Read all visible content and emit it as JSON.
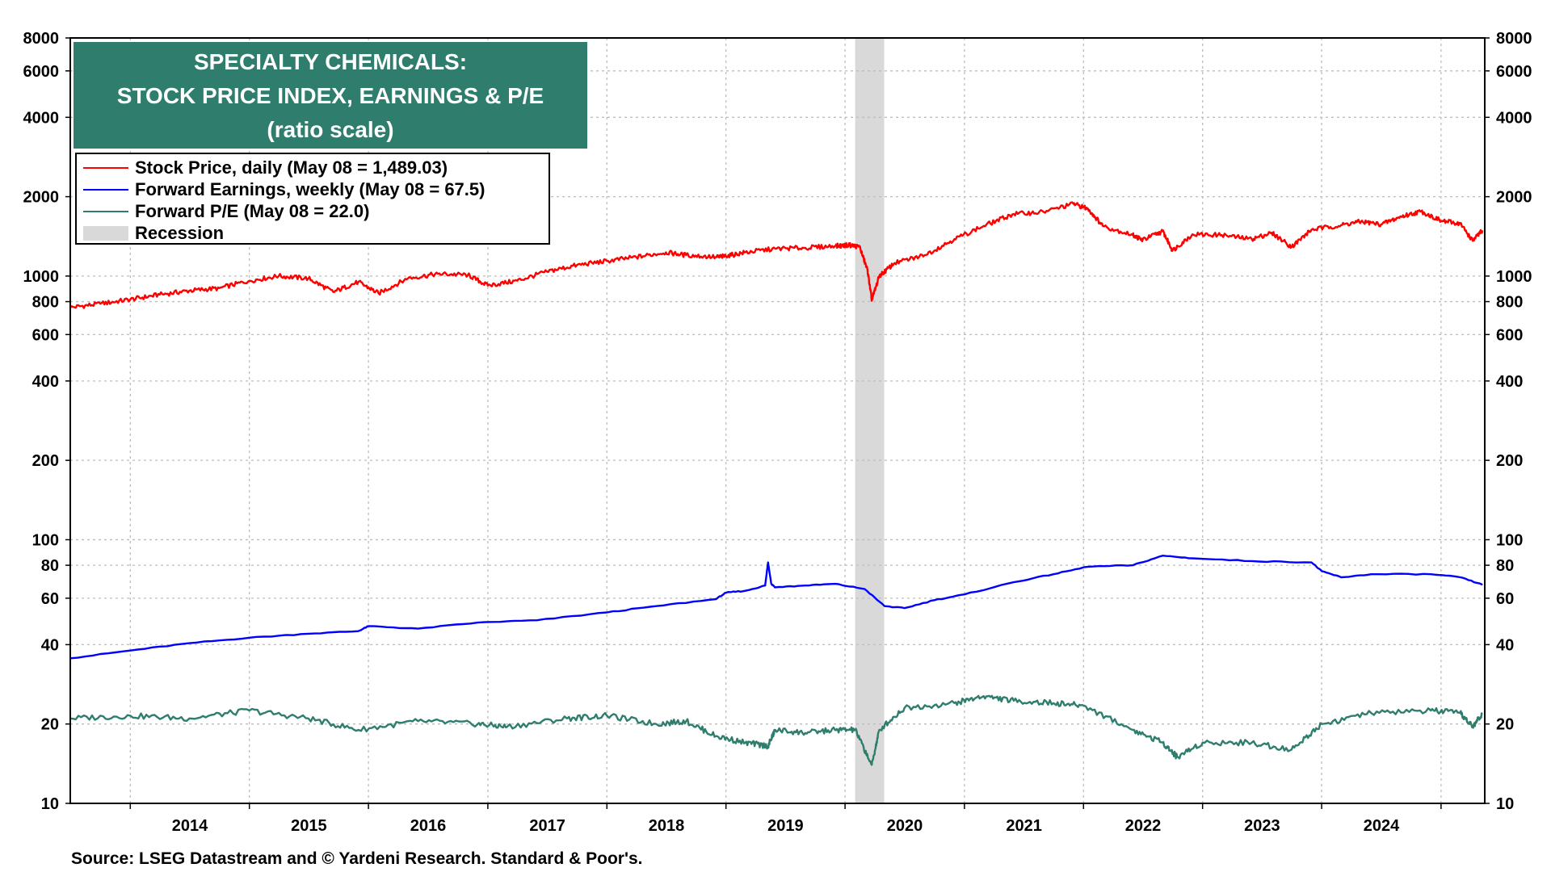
{
  "chart_data": {
    "type": "line",
    "title_lines": [
      "SPECIALTY CHEMICALS:",
      "STOCK PRICE INDEX, EARNINGS & P/E",
      "(ratio scale)"
    ],
    "y_scale": "log",
    "ylim": [
      10,
      8000
    ],
    "y_ticks": [
      10,
      20,
      40,
      60,
      80,
      100,
      200,
      400,
      600,
      800,
      1000,
      2000,
      4000,
      6000,
      8000
    ],
    "x_range": [
      "2013-07-01",
      "2025-05-15"
    ],
    "x_tick_labels": [
      "2014",
      "2015",
      "2016",
      "2017",
      "2018",
      "2019",
      "2020",
      "2021",
      "2022",
      "2023",
      "2024"
    ],
    "grid": true,
    "recession": {
      "label": "Recession",
      "start": "2020-02-01",
      "end": "2020-04-30",
      "color": "#d9d9d9"
    },
    "series": [
      {
        "name": "Stock Price, daily (May 08 = 1,489.03)",
        "color": "#ff0000",
        "points": [
          [
            "2013-07-01",
            760
          ],
          [
            "2013-10-01",
            785
          ],
          [
            "2014-01-01",
            815
          ],
          [
            "2014-04-01",
            850
          ],
          [
            "2014-07-01",
            880
          ],
          [
            "2014-10-01",
            900
          ],
          [
            "2015-01-01",
            960
          ],
          [
            "2015-04-01",
            1000
          ],
          [
            "2015-07-01",
            980
          ],
          [
            "2015-09-15",
            870
          ],
          [
            "2015-12-01",
            950
          ],
          [
            "2016-02-01",
            860
          ],
          [
            "2016-05-01",
            980
          ],
          [
            "2016-08-01",
            1020
          ],
          [
            "2016-11-01",
            1010
          ],
          [
            "2017-01-01",
            920
          ],
          [
            "2017-04-01",
            960
          ],
          [
            "2017-07-01",
            1040
          ],
          [
            "2017-10-01",
            1100
          ],
          [
            "2018-01-01",
            1140
          ],
          [
            "2018-04-01",
            1180
          ],
          [
            "2018-07-01",
            1230
          ],
          [
            "2018-09-01",
            1200
          ],
          [
            "2018-12-01",
            1180
          ],
          [
            "2019-01-01",
            1190
          ],
          [
            "2019-03-01",
            1230
          ],
          [
            "2019-06-01",
            1270
          ],
          [
            "2019-09-01",
            1280
          ],
          [
            "2019-12-01",
            1300
          ],
          [
            "2020-01-15",
            1310
          ],
          [
            "2020-02-15",
            1290
          ],
          [
            "2020-03-10",
            1050
          ],
          [
            "2020-03-23",
            810
          ],
          [
            "2020-04-15",
            1000
          ],
          [
            "2020-06-01",
            1120
          ],
          [
            "2020-09-01",
            1200
          ],
          [
            "2020-12-01",
            1380
          ],
          [
            "2021-03-01",
            1550
          ],
          [
            "2021-06-01",
            1720
          ],
          [
            "2021-09-01",
            1750
          ],
          [
            "2021-12-01",
            1880
          ],
          [
            "2022-01-15",
            1800
          ],
          [
            "2022-03-01",
            1550
          ],
          [
            "2022-06-01",
            1430
          ],
          [
            "2022-07-01",
            1370
          ],
          [
            "2022-09-01",
            1480
          ],
          [
            "2022-10-01",
            1250
          ],
          [
            "2022-12-01",
            1440
          ],
          [
            "2023-03-01",
            1430
          ],
          [
            "2023-06-01",
            1380
          ],
          [
            "2023-08-01",
            1460
          ],
          [
            "2023-10-01",
            1290
          ],
          [
            "2023-12-01",
            1500
          ],
          [
            "2024-03-01",
            1560
          ],
          [
            "2024-05-01",
            1610
          ],
          [
            "2024-07-01",
            1570
          ],
          [
            "2024-09-01",
            1680
          ],
          [
            "2024-11-01",
            1760
          ],
          [
            "2025-01-01",
            1620
          ],
          [
            "2025-03-01",
            1580
          ],
          [
            "2025-04-08",
            1360
          ],
          [
            "2025-05-08",
            1489
          ]
        ]
      },
      {
        "name": "Forward Earnings, weekly (May 08 = 67.5)",
        "color": "#0000ff",
        "points": [
          [
            "2013-07-01",
            35.5
          ],
          [
            "2014-01-01",
            38
          ],
          [
            "2014-07-01",
            40.5
          ],
          [
            "2015-01-01",
            42.5
          ],
          [
            "2015-07-01",
            44
          ],
          [
            "2015-12-01",
            45
          ],
          [
            "2016-01-01",
            47
          ],
          [
            "2016-06-01",
            46
          ],
          [
            "2016-12-01",
            48.5
          ],
          [
            "2017-06-01",
            49.5
          ],
          [
            "2018-01-01",
            53
          ],
          [
            "2018-06-01",
            56
          ],
          [
            "2018-12-01",
            59.5
          ],
          [
            "2019-01-01",
            63
          ],
          [
            "2019-03-01",
            64
          ],
          [
            "2019-05-01",
            67
          ],
          [
            "2019-05-10",
            82
          ],
          [
            "2019-05-20",
            68
          ],
          [
            "2019-06-01",
            66
          ],
          [
            "2019-09-01",
            67
          ],
          [
            "2019-12-01",
            68
          ],
          [
            "2020-03-01",
            65
          ],
          [
            "2020-05-01",
            56
          ],
          [
            "2020-07-01",
            55
          ],
          [
            "2020-10-01",
            59
          ],
          [
            "2021-01-01",
            62
          ],
          [
            "2021-06-01",
            69
          ],
          [
            "2021-10-01",
            74
          ],
          [
            "2022-01-15",
            79
          ],
          [
            "2022-06-01",
            80
          ],
          [
            "2022-09-01",
            87
          ],
          [
            "2022-12-01",
            85
          ],
          [
            "2023-06-01",
            83
          ],
          [
            "2023-12-01",
            82
          ],
          [
            "2024-01-01",
            76
          ],
          [
            "2024-03-01",
            72
          ],
          [
            "2024-06-01",
            74
          ],
          [
            "2024-12-01",
            74
          ],
          [
            "2025-03-01",
            72
          ],
          [
            "2025-05-08",
            67.5
          ]
        ]
      },
      {
        "name": "Forward P/E (May 08 = 22.0)",
        "color": "#2e7d6d",
        "points": [
          [
            "2013-07-01",
            21
          ],
          [
            "2014-01-01",
            21.5
          ],
          [
            "2014-07-01",
            21
          ],
          [
            "2015-01-01",
            22.5
          ],
          [
            "2015-07-01",
            21
          ],
          [
            "2015-12-01",
            19
          ],
          [
            "2016-06-01",
            20.5
          ],
          [
            "2016-12-01",
            20
          ],
          [
            "2017-03-01",
            19.5
          ],
          [
            "2017-09-01",
            21
          ],
          [
            "2018-01-01",
            21.5
          ],
          [
            "2018-06-01",
            20
          ],
          [
            "2018-09-01",
            20.5
          ],
          [
            "2018-12-01",
            18
          ],
          [
            "2019-03-01",
            17
          ],
          [
            "2019-05-10",
            16.5
          ],
          [
            "2019-06-01",
            19
          ],
          [
            "2019-09-01",
            18.5
          ],
          [
            "2019-12-01",
            19
          ],
          [
            "2020-02-01",
            19
          ],
          [
            "2020-03-23",
            14
          ],
          [
            "2020-04-15",
            19
          ],
          [
            "2020-07-01",
            23
          ],
          [
            "2020-12-01",
            24
          ],
          [
            "2021-03-01",
            25.5
          ],
          [
            "2021-06-01",
            24.5
          ],
          [
            "2021-10-01",
            24
          ],
          [
            "2022-01-01",
            23.5
          ],
          [
            "2022-06-01",
            19
          ],
          [
            "2022-09-01",
            17
          ],
          [
            "2022-10-15",
            15
          ],
          [
            "2023-01-01",
            17
          ],
          [
            "2023-06-01",
            17
          ],
          [
            "2023-10-01",
            16
          ],
          [
            "2024-01-01",
            20
          ],
          [
            "2024-06-01",
            22
          ],
          [
            "2024-12-01",
            22.5
          ],
          [
            "2025-03-01",
            22
          ],
          [
            "2025-04-08",
            19.5
          ],
          [
            "2025-05-08",
            22
          ]
        ]
      }
    ]
  },
  "source": "Source: LSEG Datastream and © Yardeni Research. Standard & Poor's."
}
